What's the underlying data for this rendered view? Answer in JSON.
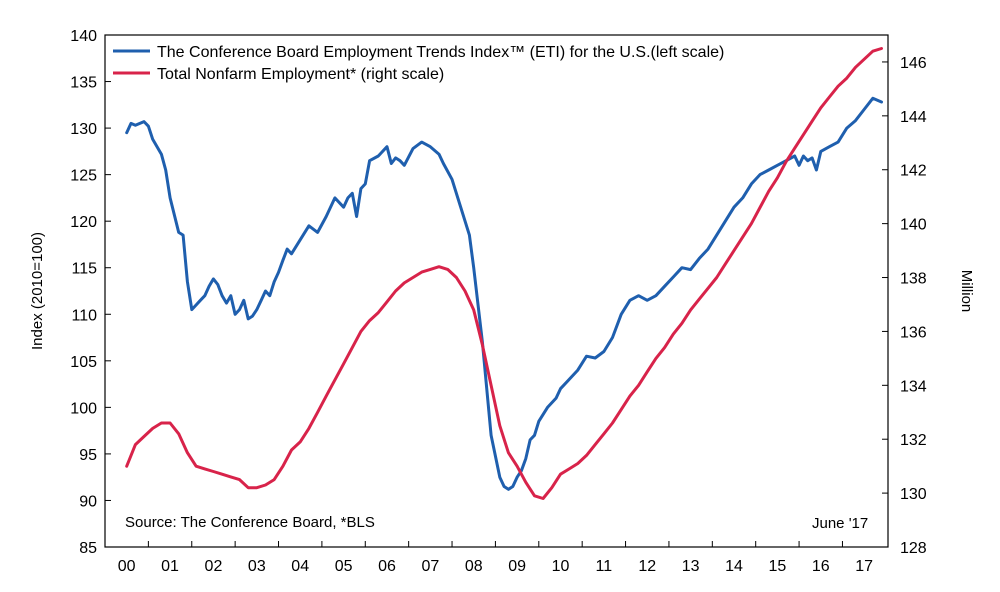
{
  "chart_data": {
    "type": "line",
    "title": "",
    "ylabel_left": "Index (2010=100)",
    "ylabel_right": "Million",
    "x_ticks": [
      "00",
      "01",
      "02",
      "03",
      "04",
      "05",
      "06",
      "07",
      "08",
      "09",
      "10",
      "11",
      "12",
      "13",
      "14",
      "15",
      "16",
      "17"
    ],
    "ylim_left": [
      85,
      140
    ],
    "yticks_left": [
      140,
      135,
      130,
      125,
      120,
      115,
      110,
      105,
      100,
      95,
      90,
      85
    ],
    "ylim_right": [
      128,
      147
    ],
    "yticks_right": [
      146,
      144,
      142,
      140,
      138,
      136,
      134,
      132,
      130,
      128
    ],
    "grid": false,
    "legend_position": "top-left",
    "source_note": "Source: The Conference Board, *BLS",
    "date_note": "June '17",
    "series": [
      {
        "name": "The Conference Board Employment Trends Index™ (ETI) for the U.S.(left scale)",
        "axis": "left",
        "color": "#1f5fae",
        "x": [
          2000.0,
          2000.1,
          2000.2,
          2000.4,
          2000.5,
          2000.6,
          2000.8,
          2000.9,
          2001.0,
          2001.2,
          2001.3,
          2001.4,
          2001.5,
          2001.6,
          2001.7,
          2001.8,
          2001.9,
          2002.0,
          2002.1,
          2002.2,
          2002.3,
          2002.4,
          2002.5,
          2002.6,
          2002.7,
          2002.8,
          2002.9,
          2003.0,
          2003.1,
          2003.2,
          2003.3,
          2003.4,
          2003.5,
          2003.6,
          2003.7,
          2003.8,
          2004.0,
          2004.2,
          2004.4,
          2004.6,
          2004.8,
          2005.0,
          2005.1,
          2005.2,
          2005.3,
          2005.4,
          2005.5,
          2005.6,
          2005.8,
          2006.0,
          2006.1,
          2006.2,
          2006.3,
          2006.4,
          2006.6,
          2006.8,
          2007.0,
          2007.2,
          2007.3,
          2007.5,
          2007.7,
          2007.9,
          2008.0,
          2008.2,
          2008.4,
          2008.6,
          2008.7,
          2008.8,
          2008.9,
          2009.0,
          2009.1,
          2009.2,
          2009.3,
          2009.4,
          2009.5,
          2009.7,
          2009.9,
          2010.0,
          2010.2,
          2010.4,
          2010.6,
          2010.8,
          2011.0,
          2011.2,
          2011.4,
          2011.6,
          2011.8,
          2012.0,
          2012.2,
          2012.4,
          2012.6,
          2012.8,
          2013.0,
          2013.2,
          2013.4,
          2013.6,
          2013.8,
          2014.0,
          2014.2,
          2014.4,
          2014.6,
          2014.8,
          2015.0,
          2015.2,
          2015.4,
          2015.5,
          2015.6,
          2015.7,
          2015.8,
          2015.9,
          2016.0,
          2016.2,
          2016.4,
          2016.6,
          2016.8,
          2017.0,
          2017.2,
          2017.4
        ],
        "values": [
          129.5,
          130.5,
          130.3,
          130.7,
          130.2,
          128.8,
          127.2,
          125.5,
          122.5,
          118.8,
          118.5,
          113.5,
          110.5,
          111.0,
          111.5,
          112.0,
          113.0,
          113.8,
          113.2,
          112.0,
          111.2,
          112.0,
          110.0,
          110.5,
          111.5,
          109.5,
          109.8,
          110.5,
          111.5,
          112.5,
          112.0,
          113.5,
          114.5,
          115.8,
          117.0,
          116.5,
          118.0,
          119.5,
          118.8,
          120.5,
          122.5,
          121.5,
          122.5,
          123.0,
          120.5,
          123.5,
          124.0,
          126.5,
          127.0,
          128.0,
          126.2,
          126.8,
          126.5,
          126.0,
          127.8,
          128.5,
          128.0,
          127.2,
          126.2,
          124.5,
          121.5,
          118.5,
          115.0,
          107.0,
          97.0,
          92.5,
          91.5,
          91.2,
          91.5,
          92.5,
          93.2,
          94.5,
          96.5,
          97.0,
          98.5,
          100.0,
          101.0,
          102.0,
          103.0,
          104.0,
          105.5,
          105.3,
          106.0,
          107.5,
          110.0,
          111.5,
          112.0,
          111.5,
          112.0,
          113.0,
          114.0,
          115.0,
          114.8,
          116.0,
          117.0,
          118.5,
          120.0,
          121.5,
          122.5,
          124.0,
          125.0,
          125.5,
          126.0,
          126.5,
          127.0,
          126.0,
          127.0,
          126.5,
          126.8,
          125.5,
          127.5,
          128.0,
          128.5,
          130.0,
          130.8,
          132.0,
          133.2,
          132.8
        ]
      },
      {
        "name": "Total Nonfarm Employment* (right scale)",
        "axis": "right",
        "color": "#d8234a",
        "x": [
          2000.0,
          2000.2,
          2000.4,
          2000.6,
          2000.8,
          2001.0,
          2001.2,
          2001.4,
          2001.6,
          2001.8,
          2002.0,
          2002.2,
          2002.4,
          2002.6,
          2002.8,
          2003.0,
          2003.2,
          2003.4,
          2003.6,
          2003.8,
          2004.0,
          2004.2,
          2004.4,
          2004.6,
          2004.8,
          2005.0,
          2005.2,
          2005.4,
          2005.6,
          2005.8,
          2006.0,
          2006.2,
          2006.4,
          2006.6,
          2006.8,
          2007.0,
          2007.2,
          2007.4,
          2007.6,
          2007.8,
          2008.0,
          2008.2,
          2008.4,
          2008.6,
          2008.8,
          2009.0,
          2009.2,
          2009.4,
          2009.6,
          2009.8,
          2010.0,
          2010.2,
          2010.4,
          2010.6,
          2010.8,
          2011.0,
          2011.2,
          2011.4,
          2011.6,
          2011.8,
          2012.0,
          2012.2,
          2012.4,
          2012.6,
          2012.8,
          2013.0,
          2013.2,
          2013.4,
          2013.6,
          2013.8,
          2014.0,
          2014.2,
          2014.4,
          2014.6,
          2014.8,
          2015.0,
          2015.2,
          2015.4,
          2015.6,
          2015.8,
          2016.0,
          2016.2,
          2016.4,
          2016.6,
          2016.8,
          2017.0,
          2017.2,
          2017.4
        ],
        "values": [
          131.0,
          131.8,
          132.1,
          132.4,
          132.6,
          132.6,
          132.2,
          131.5,
          131.0,
          130.9,
          130.8,
          130.7,
          130.6,
          130.5,
          130.2,
          130.2,
          130.3,
          130.5,
          131.0,
          131.6,
          131.9,
          132.4,
          133.0,
          133.6,
          134.2,
          134.8,
          135.4,
          136.0,
          136.4,
          136.7,
          137.1,
          137.5,
          137.8,
          138.0,
          138.2,
          138.3,
          138.4,
          138.3,
          138.0,
          137.5,
          136.8,
          135.5,
          134.0,
          132.5,
          131.5,
          131.0,
          130.4,
          129.9,
          129.8,
          130.2,
          130.7,
          130.9,
          131.1,
          131.4,
          131.8,
          132.2,
          132.6,
          133.1,
          133.6,
          134.0,
          134.5,
          135.0,
          135.4,
          135.9,
          136.3,
          136.8,
          137.2,
          137.6,
          138.0,
          138.5,
          139.0,
          139.5,
          140.0,
          140.6,
          141.2,
          141.7,
          142.3,
          142.8,
          143.3,
          143.8,
          144.3,
          144.7,
          145.1,
          145.4,
          145.8,
          146.1,
          146.4,
          146.5
        ]
      }
    ]
  }
}
